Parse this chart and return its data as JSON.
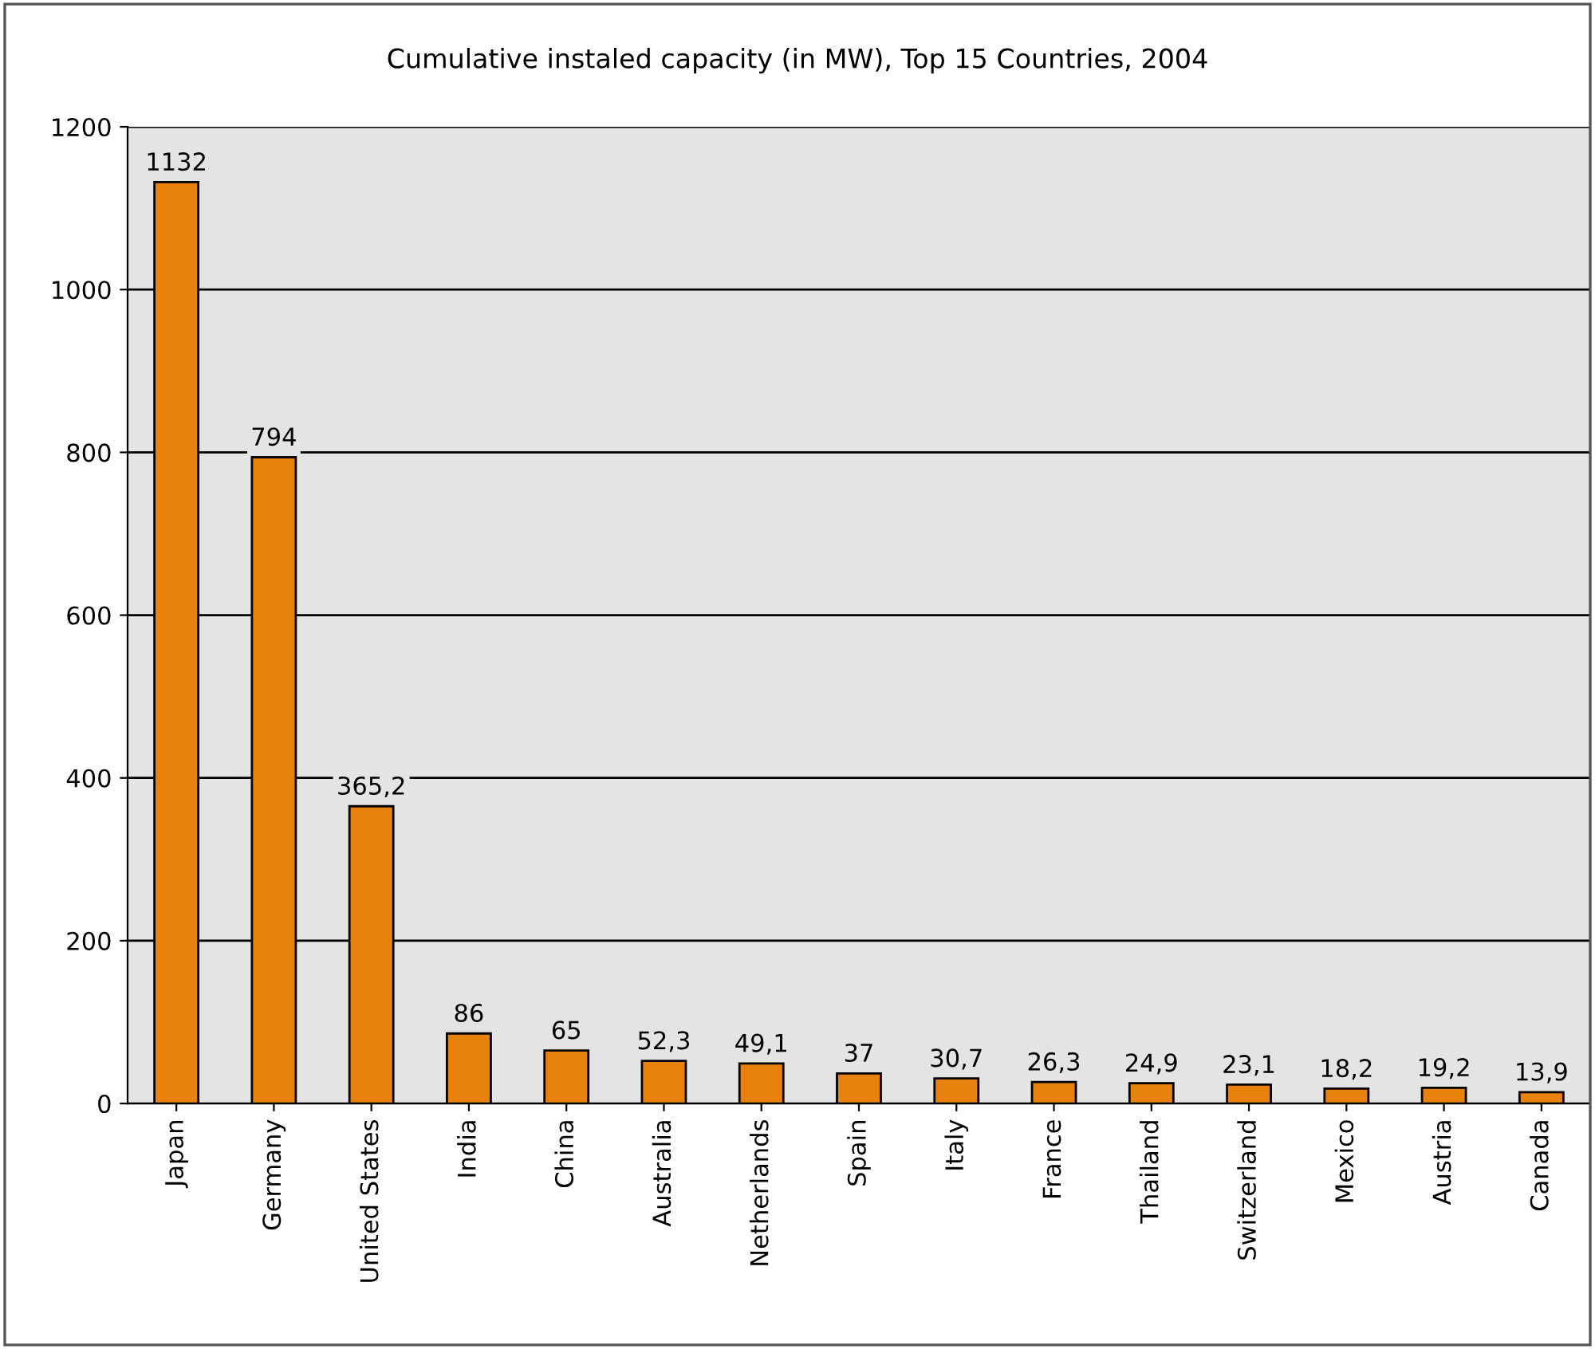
{
  "chart_data": {
    "type": "bar",
    "title": "Cumulative instaled capacity (in MW), Top 15 Countries, 2004",
    "categories": [
      "Japan",
      "Germany",
      "United States",
      "India",
      "China",
      "Australia",
      "Netherlands",
      "Spain",
      "Italy",
      "France",
      "Thailand",
      "Switzerland",
      "Mexico",
      "Austria",
      "Canada"
    ],
    "values": [
      1132,
      794,
      365.2,
      86,
      65,
      52.3,
      49.1,
      37,
      30.7,
      26.3,
      24.9,
      23.1,
      18.2,
      19.2,
      13.9
    ],
    "value_labels": [
      "1132",
      "794",
      "365,2",
      "86",
      "65",
      "52,3",
      "49,1",
      "37",
      "30,7",
      "26,3",
      "24,9",
      "23,1",
      "18,2",
      "19,2",
      "13,9"
    ],
    "color": "#e8820c",
    "ylim": [
      0,
      1200
    ],
    "yticks": [
      0,
      200,
      400,
      600,
      800,
      1000,
      1200
    ],
    "grid": "y",
    "legend": false
  }
}
